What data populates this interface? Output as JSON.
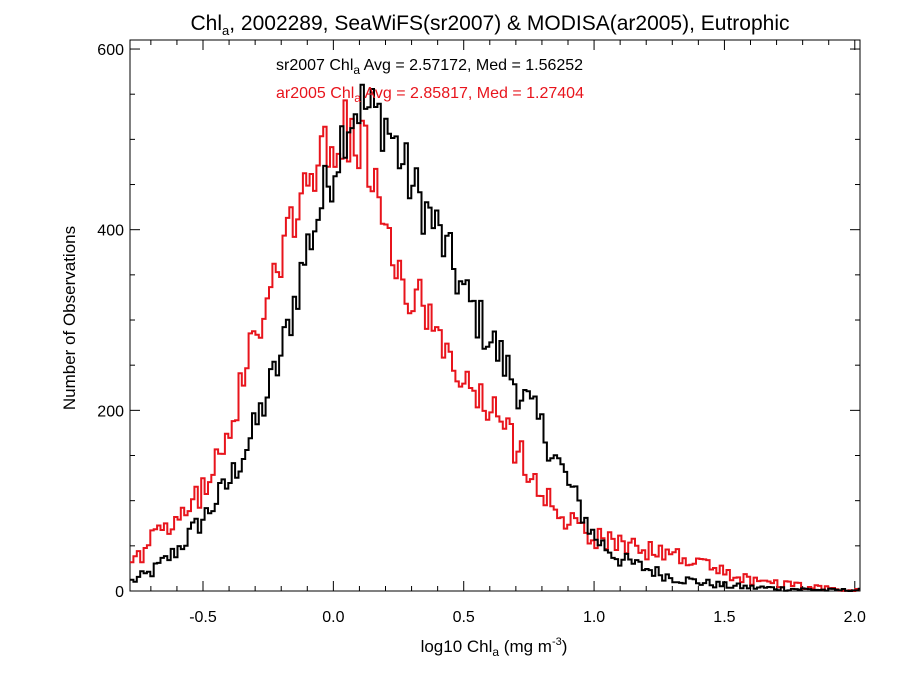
{
  "chart_data": {
    "type": "line",
    "title": {
      "pre": "Chl",
      "sub": "a",
      "post": ", 2002289, SeaWiFS(sr2007) & MODISA(ar2005), Eutrophic"
    },
    "xlabel": {
      "pre": "log10 Chl",
      "sub": "a",
      "mid": " (mg m",
      "sup": "-3",
      "post": ")"
    },
    "ylabel": "Number of Observations",
    "xlim": [
      -0.78,
      2.02
    ],
    "ylim": [
      0,
      610
    ],
    "xticks": [
      -0.5,
      0.0,
      0.5,
      1.0,
      1.5,
      2.0
    ],
    "xtick_labels": [
      "-0.5",
      "0.0",
      "0.5",
      "1.0",
      "1.5",
      "2.0"
    ],
    "yticks": [
      0,
      200,
      400,
      600
    ],
    "ytick_labels": [
      "0",
      "200",
      "400",
      "600"
    ],
    "grid": false,
    "legend": "top-center",
    "series": [
      {
        "color": "#000000",
        "annotation": {
          "pre": "sr2007 Chl",
          "sub": "a",
          "post": " Avg = 2.57172, Med = 1.56252"
        },
        "x": [
          -0.78,
          -0.7,
          -0.6,
          -0.5,
          -0.4,
          -0.3,
          -0.2,
          -0.1,
          0.0,
          0.05,
          0.1,
          0.15,
          0.2,
          0.3,
          0.4,
          0.5,
          0.6,
          0.7,
          0.8,
          0.9,
          1.0,
          1.1,
          1.2,
          1.3,
          1.4,
          1.5,
          1.6,
          1.7,
          1.8,
          1.9,
          2.0
        ],
        "y": [
          10,
          20,
          45,
          80,
          120,
          180,
          260,
          380,
          470,
          520,
          540,
          530,
          520,
          450,
          400,
          330,
          280,
          230,
          180,
          120,
          60,
          35,
          25,
          15,
          10,
          6,
          4,
          3,
          2,
          1,
          1
        ]
      },
      {
        "color": "#e8141c",
        "annotation": {
          "pre": "ar2005 Chl",
          "sub": "a",
          "post": " Avg = 2.85817, Med = 1.27404"
        },
        "x": [
          -0.78,
          -0.7,
          -0.6,
          -0.5,
          -0.4,
          -0.3,
          -0.2,
          -0.1,
          -0.05,
          0.0,
          0.05,
          0.1,
          0.15,
          0.2,
          0.3,
          0.4,
          0.5,
          0.6,
          0.7,
          0.8,
          0.9,
          1.0,
          1.1,
          1.2,
          1.3,
          1.4,
          1.5,
          1.6,
          1.7,
          1.8,
          1.9,
          2.0
        ],
        "y": [
          25,
          55,
          75,
          110,
          180,
          280,
          380,
          450,
          480,
          500,
          510,
          500,
          460,
          380,
          330,
          290,
          230,
          200,
          160,
          110,
          80,
          60,
          50,
          45,
          40,
          30,
          20,
          12,
          8,
          5,
          3,
          2
        ]
      }
    ]
  }
}
